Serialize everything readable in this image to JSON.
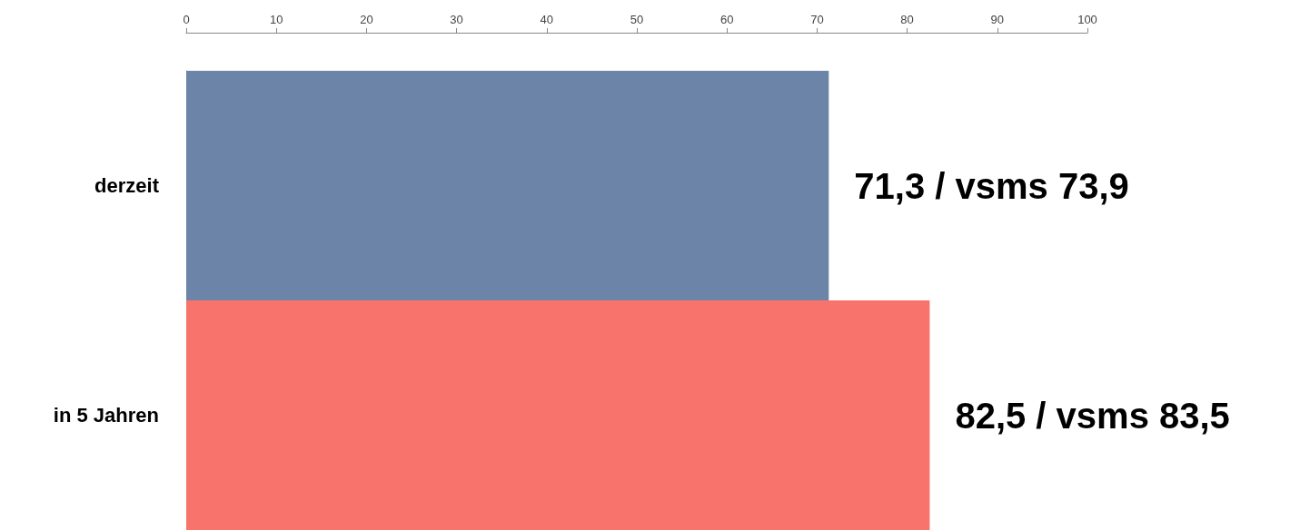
{
  "chart_data": {
    "type": "bar",
    "orientation": "horizontal",
    "categories": [
      "derzeit",
      "in 5 Jahren"
    ],
    "values": [
      71.3,
      82.5
    ],
    "colors": [
      "#6b84a8",
      "#f8736c"
    ],
    "value_labels": [
      "71,3 / vsms 73,9",
      "82,5 / vsms 83,5"
    ],
    "xlim": [
      0,
      100
    ],
    "xticks": [
      0,
      10,
      20,
      30,
      40,
      50,
      60,
      70,
      80,
      90,
      100
    ]
  }
}
